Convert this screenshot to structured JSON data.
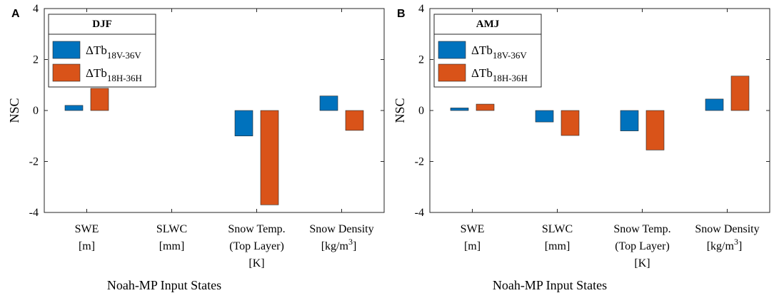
{
  "chart_data": [
    {
      "type": "bar",
      "panel_label": "A",
      "legend_title": "DJF",
      "categories": [
        [
          "SWE",
          "[m]"
        ],
        [
          "SLWC",
          "[mm]"
        ],
        [
          "Snow Temp.",
          "(Top Layer)",
          "[K]"
        ],
        [
          "Snow Density",
          "[kg/m",
          "3",
          "]"
        ]
      ],
      "series": [
        {
          "name": "ΔTb",
          "subscript": "18V-36V",
          "color": "#0072BD",
          "values": [
            0.2,
            0,
            -1.0,
            0.57
          ]
        },
        {
          "name": "ΔTb",
          "subscript": "18H-36H",
          "color": "#D95319",
          "values": [
            0.87,
            0,
            -3.7,
            -0.78
          ]
        }
      ],
      "ylabel": "NSC",
      "xlabel": "Noah-MP Input States",
      "ylim": [
        -4,
        4
      ],
      "yticks": [
        "4",
        "2",
        "0",
        "-2",
        "-4"
      ],
      "legend_position": "top-left"
    },
    {
      "type": "bar",
      "panel_label": "B",
      "legend_title": "AMJ",
      "categories": [
        [
          "SWE",
          "[m]"
        ],
        [
          "SLWC",
          "[mm]"
        ],
        [
          "Snow Temp.",
          "(Top Layer)",
          "[K]"
        ],
        [
          "Snow Density",
          "[kg/m",
          "3",
          "]"
        ]
      ],
      "series": [
        {
          "name": "ΔTb",
          "subscript": "18V-36V",
          "color": "#0072BD",
          "values": [
            0.1,
            -0.45,
            -0.8,
            0.45
          ]
        },
        {
          "name": "ΔTb",
          "subscript": "18H-36H",
          "color": "#D95319",
          "values": [
            0.25,
            -0.98,
            -1.55,
            1.35
          ]
        }
      ],
      "ylabel": "NSC",
      "xlabel": "Noah-MP Input States",
      "ylim": [
        -4,
        4
      ],
      "yticks": [
        "4",
        "2",
        "0",
        "-2",
        "-4"
      ],
      "legend_position": "top-left"
    }
  ]
}
